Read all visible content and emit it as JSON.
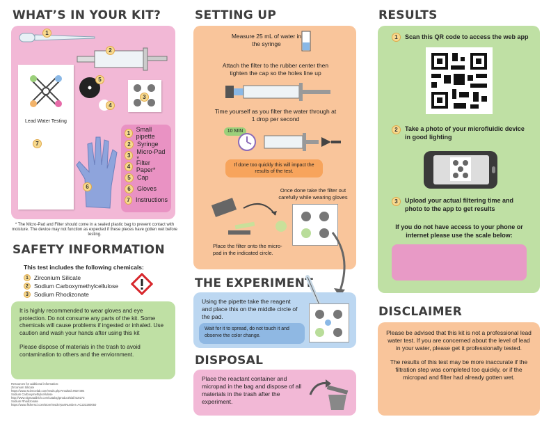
{
  "kit": {
    "heading": "WHAT’S IN YOUR KIT?",
    "card_label": "Lead Water Testing",
    "items": [
      {
        "n": "1",
        "label": "Small pipette"
      },
      {
        "n": "2",
        "label": "Syringe"
      },
      {
        "n": "3",
        "label": "Micro-Pad *"
      },
      {
        "n": "4",
        "label": "Filter Paper*"
      },
      {
        "n": "5",
        "label": "Cap"
      },
      {
        "n": "6",
        "label": "Gloves"
      },
      {
        "n": "7",
        "label": "Instructions"
      }
    ],
    "callouts": [
      "1",
      "2",
      "3",
      "4",
      "5",
      "6",
      "7"
    ],
    "footnote": "* The Micro-Pad and Filter should come in a sealed plastic bag to prevent contact with moisture. The device may not function as expected if these pieces have gotten wet before testing."
  },
  "safety": {
    "heading": "SAFETY INFORMATION",
    "intro": "This test includes the following chemicals:",
    "chemicals": [
      {
        "n": "1",
        "label": "Zirconium Silicate"
      },
      {
        "n": "2",
        "label": "Sodium Carboxymethylcellulose"
      },
      {
        "n": "3",
        "label": "Sodium Rhodizonate"
      }
    ],
    "warning_p1": "It is highly recommended to wear gloves and eye protection. Do not consume any parts of the kit. Some chemicals will cause problems if ingested or inhaled. Use caution and wash your hands after using this kit",
    "warning_p2": "Please dispose of materials in the trash to avoid contamination to others and the enviornment.",
    "resources_title": "Resources for additional information:",
    "resources": [
      "Zirconium Silicate",
      "https://www.sciencelab.com/msds.php?msdsId=9927394",
      "Sodium Carboxymethylcellulose",
      "http://www.sigmaaldrich.com/catalog/product/sial/419273",
      "Sodium Rhodizonate",
      "https://www.fishersci.com/store/msds?partNumber=AC223280050"
    ]
  },
  "setup": {
    "heading": "SETTING UP",
    "step1": "Measure 25 mL of water in the syringe",
    "step2": "Attach the filter to the rubber center then tighten the cap so the holes line up",
    "step3": "Time yourself as you filter the water through at 1 drop per second",
    "timer_label": "10 MIN",
    "warning": "If done too quickly this will impact the results of the test.",
    "step4": "Once done take the filter out carefully while wearing gloves",
    "step5": "Place the filter onto the micro-pad in the indicated circle."
  },
  "experiment": {
    "heading": "THE EXPERIMENT",
    "text": "Using the pipette take the reagent and place this on the middle circle of the pad.",
    "note": "Wait for it to spread, do not touch it and observe the color change."
  },
  "disposal": {
    "heading": "DISPOSAL",
    "text": "Place the reactant container and micropad in the bag and dispose of all materials in the trash after the experiment."
  },
  "results": {
    "heading": "RESULTS",
    "step1": {
      "n": "1",
      "text": "Scan this QR code to access the web app"
    },
    "step2": {
      "n": "2",
      "text": "Take a photo of your microfluidic device in good lighting"
    },
    "step3": {
      "n": "3",
      "text": "Upload your actual filtering time and photo to the app to get results"
    },
    "fallback": "If you do not have access to your phone or internet please use the scale below:"
  },
  "disclaimer": {
    "heading": "DISCLAIMER",
    "p1": "Please be advised that this kit is not a professional lead water test. If you are concerned about the level of lead in your water, please get it professionally tested.",
    "p2": "The results of this test may be more inaccurate if the filtration step was completed too quickly, or if the micropad and filter had already gotten wet."
  },
  "colors": {
    "pink": "#f2b8d6",
    "orange": "#f9c59b",
    "green": "#bfe0a4",
    "blue": "#bcd7f1",
    "scale": "#e89ac6"
  }
}
